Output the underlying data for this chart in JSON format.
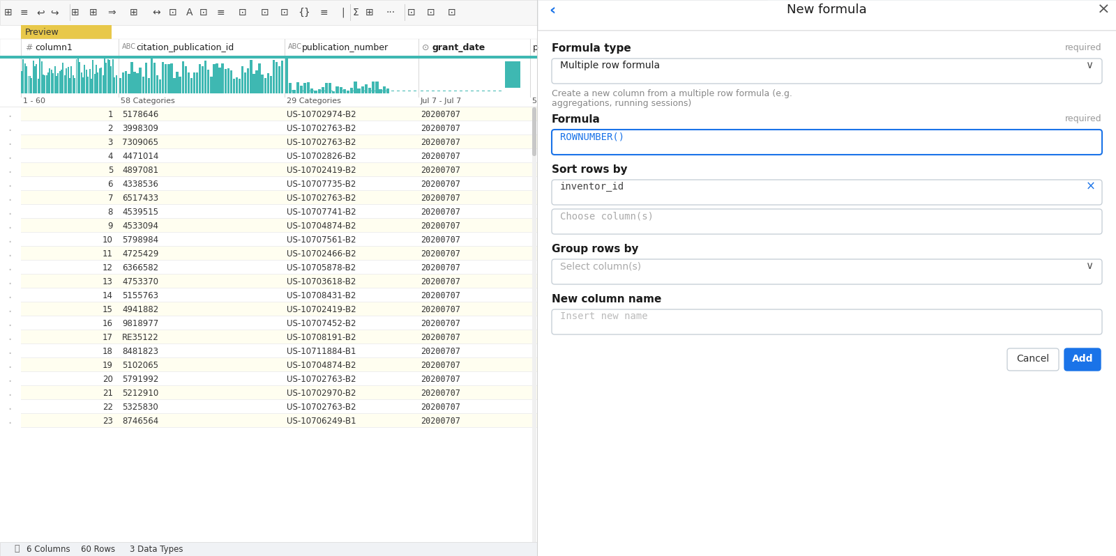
{
  "title": "New formula",
  "bg_color": "#ffffff",
  "teal": "#3eb8b2",
  "preview_yellow": "#e8c84a",
  "text_dark": "#1a1a1a",
  "text_gray": "#888888",
  "text_light": "#aaaaaa",
  "text_blue": "#1a73e8",
  "input_border": "#c8d0d8",
  "input_focused_border": "#1a73e8",
  "col1_data": [
    1,
    2,
    3,
    4,
    5,
    6,
    7,
    8,
    9,
    10,
    11,
    12,
    13,
    14,
    15,
    16,
    17,
    18,
    19,
    20,
    21,
    22,
    23
  ],
  "col2_data": [
    "5178646",
    "3998309",
    "7309065",
    "4471014",
    "4897081",
    "4338536",
    "6517433",
    "4539515",
    "4533094",
    "5798984",
    "4725429",
    "6366582",
    "4753370",
    "5155763",
    "4941882",
    "9818977",
    "RE35122",
    "8481823",
    "5102065",
    "5791992",
    "5212910",
    "5325830",
    "8746564"
  ],
  "col3_data": [
    "US-10702974-B2",
    "US-10702763-B2",
    "US-10702763-B2",
    "US-10702826-B2",
    "US-10702419-B2",
    "US-10707735-B2",
    "US-10702763-B2",
    "US-10707741-B2",
    "US-10704874-B2",
    "US-10707561-B2",
    "US-10702466-B2",
    "US-10705878-B2",
    "US-10703618-B2",
    "US-10708431-B2",
    "US-10702419-B2",
    "US-10707452-B2",
    "US-10708191-B2",
    "US-10711884-B1",
    "US-10704874-B2",
    "US-10702763-B2",
    "US-10702970-B2",
    "US-10702763-B2",
    "US-10706249-B1"
  ],
  "col4_data": [
    "20200707",
    "20200707",
    "20200707",
    "20200707",
    "20200707",
    "20200707",
    "20200707",
    "20200707",
    "20200707",
    "20200707",
    "20200707",
    "20200707",
    "20200707",
    "20200707",
    "20200707",
    "20200707",
    "20200707",
    "20200707",
    "20200707",
    "20200707",
    "20200707",
    "20200707",
    "20200707"
  ],
  "row_range": "1 - 60",
  "col2_summary": "58 Categories",
  "col3_summary": "29 Categories",
  "col4_summary": "Jul 7 - Jul 7",
  "col5_summary": "5",
  "total_rows": "60 Rows",
  "total_cols": "6 Columns",
  "data_types": "3 Data Types",
  "formula_type_label": "Formula type",
  "formula_type_value": "Multiple row formula",
  "formula_type_desc": "Create a new column from a multiple row formula (e.g.\naggregations, running sessions)",
  "formula_label": "Formula",
  "formula_value": "ROWNUMBER()",
  "sort_rows_label": "Sort rows by",
  "sort_rows_value": "inventor_id",
  "sort_rows_placeholder": "Choose column(s)",
  "group_rows_label": "Group rows by",
  "group_rows_placeholder": "Select column(s)",
  "new_col_label": "New column name",
  "new_col_placeholder": "Insert new name",
  "required_text": "required",
  "cancel_text": "Cancel",
  "add_text": "Add"
}
